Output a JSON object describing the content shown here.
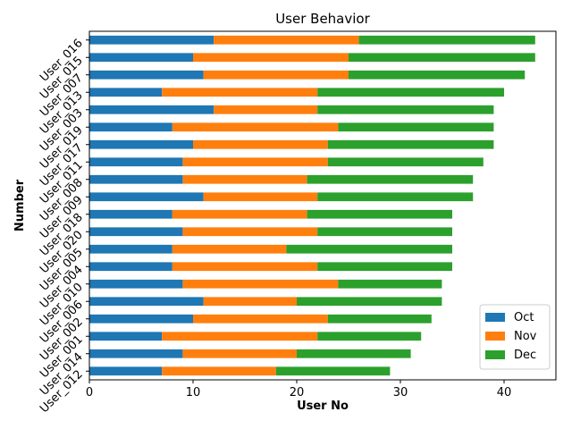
{
  "chart_data": {
    "type": "bar",
    "orientation": "horizontal",
    "stacked": true,
    "title": "User Behavior",
    "xlabel": "User No",
    "ylabel": "Number",
    "xlim": [
      0,
      45
    ],
    "xticks": [
      0,
      10,
      20,
      30,
      40
    ],
    "grid": false,
    "legend_position": "lower-right",
    "categories": [
      "User_012",
      "User_014",
      "User_001",
      "User_002",
      "User_006",
      "User_010",
      "User_004",
      "User_005",
      "User_020",
      "User_018",
      "User_009",
      "User_008",
      "User_011",
      "User_017",
      "User_019",
      "User_003",
      "User_013",
      "User_007",
      "User_015",
      "User_016"
    ],
    "series": [
      {
        "name": "Oct",
        "color": "#1f77b4",
        "values": [
          7,
          9,
          7,
          10,
          11,
          9,
          8,
          8,
          9,
          8,
          11,
          9,
          9,
          10,
          8,
          12,
          7,
          11,
          10,
          12
        ]
      },
      {
        "name": "Nov",
        "color": "#ff7f0e",
        "values": [
          11,
          11,
          15,
          13,
          9,
          15,
          14,
          11,
          13,
          13,
          11,
          12,
          14,
          13,
          16,
          10,
          15,
          14,
          15,
          14
        ]
      },
      {
        "name": "Dec",
        "color": "#2ca02c",
        "values": [
          11,
          11,
          10,
          10,
          14,
          10,
          13,
          16,
          13,
          14,
          15,
          16,
          15,
          16,
          15,
          17,
          18,
          17,
          18,
          17
        ]
      }
    ]
  }
}
